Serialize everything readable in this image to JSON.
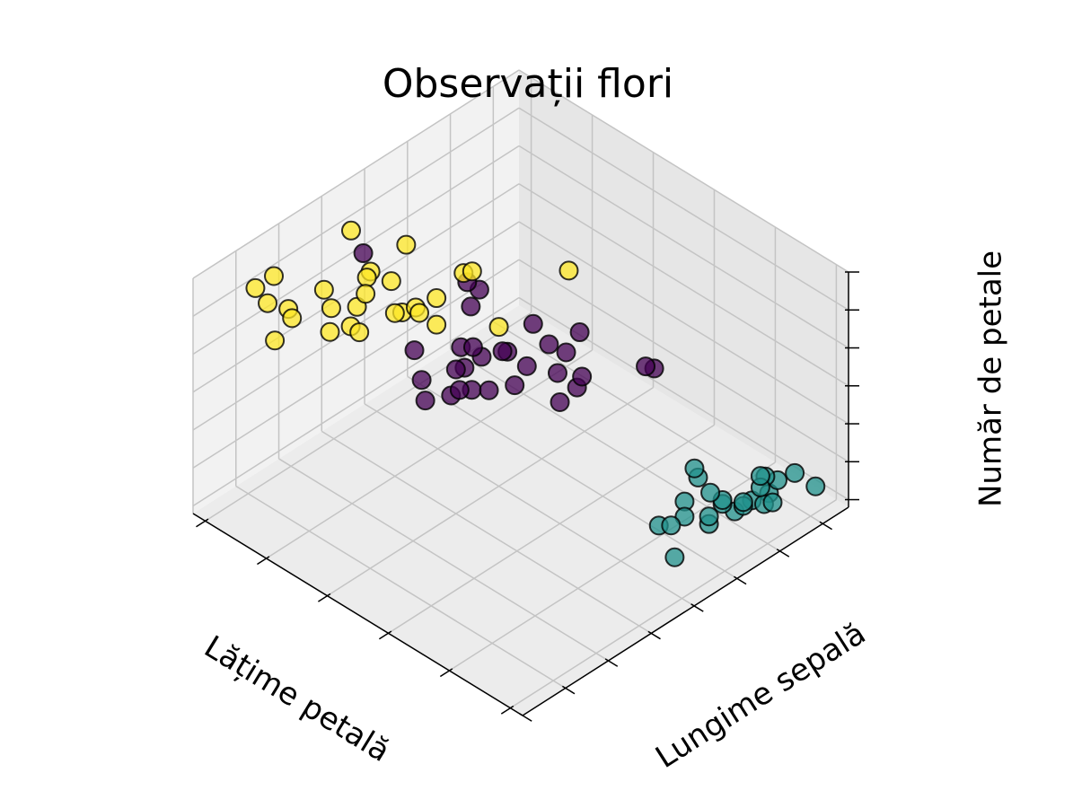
{
  "chart_data": {
    "type": "scatter3d",
    "title": "Observații flori",
    "xlabel": "Lățime petală",
    "ylabel": "Lungime sepală",
    "zlabel": "Număr de petale",
    "xlim": [
      -0.1,
      2.6
    ],
    "xticks": [
      0,
      0.5,
      1,
      1.5,
      2,
      2.5
    ],
    "ylim": [
      4.2,
      8.0
    ],
    "yticks": [
      4.5,
      5,
      5.5,
      6,
      6.5,
      7,
      7.5,
      8
    ],
    "zlim": [
      0.8,
      7.0
    ],
    "zticks": [
      1,
      2,
      3,
      4,
      5,
      6,
      7
    ],
    "grid": true,
    "series": [
      {
        "color": "#21918c",
        "x": [
          0.2,
          0.2,
          0.2,
          0.2,
          0.2,
          0.4,
          0.3,
          0.2,
          0.2,
          0.1,
          0.2,
          0.2,
          0.1,
          0.1,
          0.2,
          0.4,
          0.4,
          0.3,
          0.3,
          0.3,
          0.2,
          0.4,
          0.5,
          0.2,
          0.6
        ],
        "y": [
          5.1,
          4.9,
          4.7,
          4.6,
          5.0,
          5.4,
          4.6,
          5.0,
          4.4,
          4.9,
          5.4,
          4.8,
          4.8,
          4.3,
          5.8,
          5.7,
          5.4,
          5.1,
          5.7,
          5.1,
          5.4,
          5.1,
          5.1,
          4.8,
          5.0
        ],
        "z": [
          1.4,
          1.4,
          1.3,
          1.5,
          1.4,
          1.7,
          1.4,
          1.5,
          1.4,
          1.5,
          1.5,
          1.6,
          1.4,
          1.1,
          1.2,
          1.5,
          1.3,
          1.4,
          1.7,
          1.5,
          1.7,
          1.5,
          1.7,
          1.9,
          1.6
        ]
      },
      {
        "color": "#440154",
        "x": [
          1.4,
          1.5,
          1.5,
          1.3,
          1.5,
          1.3,
          1.6,
          1.0,
          1.3,
          1.4,
          1.0,
          1.5,
          1.0,
          1.4,
          1.3,
          1.4,
          1.5,
          1.0,
          1.5,
          1.1,
          1.8,
          1.3,
          1.5,
          1.2,
          1.3,
          1.4,
          1.7,
          2.4,
          1.8,
          1.9
        ],
        "y": [
          7.0,
          6.4,
          6.9,
          5.5,
          6.5,
          5.7,
          6.3,
          4.9,
          6.6,
          5.2,
          5.0,
          5.9,
          6.0,
          6.1,
          5.6,
          6.7,
          5.6,
          5.8,
          6.2,
          5.6,
          5.9,
          6.1,
          6.3,
          6.1,
          6.4,
          6.6,
          6.7,
          6.3,
          5.8,
          5.8
        ],
        "z": [
          4.7,
          4.5,
          4.9,
          4.0,
          4.6,
          4.5,
          4.7,
          3.3,
          4.6,
          3.9,
          3.5,
          4.2,
          4.0,
          4.7,
          3.6,
          4.4,
          4.5,
          4.1,
          4.5,
          3.9,
          4.8,
          4.0,
          4.9,
          4.7,
          4.3,
          4.4,
          5.0,
          5.6,
          5.1,
          5.1
        ]
      },
      {
        "color": "#fde725",
        "x": [
          2.5,
          2.1,
          1.8,
          2.2,
          2.1,
          1.7,
          1.8,
          1.8,
          2.5,
          2.0,
          1.9,
          2.1,
          2.0,
          2.4,
          2.3,
          1.8,
          2.2,
          2.3,
          1.5,
          2.3,
          2.0,
          2.0,
          1.8,
          2.1,
          1.8,
          2.1,
          1.9,
          2.0
        ],
        "y": [
          6.3,
          7.1,
          6.3,
          6.5,
          7.6,
          4.9,
          7.3,
          6.7,
          7.2,
          6.5,
          6.4,
          6.8,
          5.7,
          5.8,
          6.4,
          6.5,
          7.7,
          7.7,
          6.0,
          6.9,
          5.6,
          7.7,
          6.3,
          6.7,
          7.2,
          6.4,
          7.4,
          7.9
        ],
        "z": [
          6.0,
          5.9,
          5.6,
          5.8,
          6.6,
          4.5,
          6.3,
          5.8,
          6.1,
          5.1,
          5.3,
          5.5,
          5.0,
          5.1,
          5.3,
          5.5,
          6.7,
          6.9,
          5.0,
          5.7,
          4.9,
          6.7,
          4.9,
          5.7,
          6.0,
          5.6,
          6.1,
          6.4
        ]
      }
    ]
  }
}
